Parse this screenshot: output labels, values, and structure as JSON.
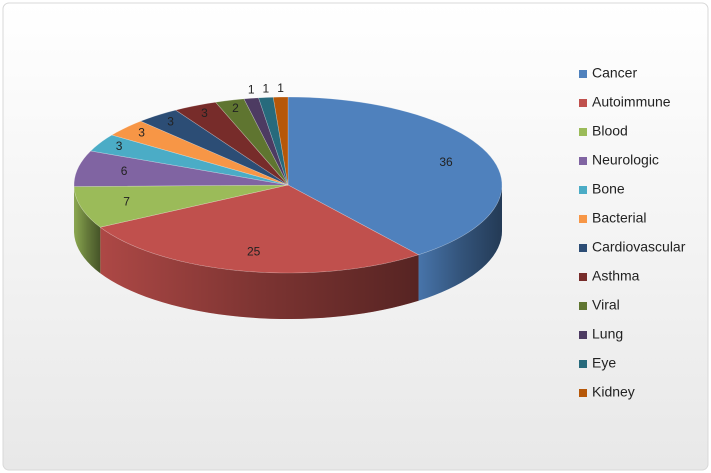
{
  "chart_data": {
    "type": "pie3d",
    "categories": [
      "Cancer",
      "Autoimmune",
      "Blood",
      "Neurologic",
      "Bone",
      "Bacterial",
      "Cardiovascular",
      "Asthma",
      "Viral",
      "Lung",
      "Eye",
      "Kidney"
    ],
    "values": [
      36,
      25,
      7,
      6,
      3,
      3,
      3,
      3,
      2,
      1,
      1,
      1
    ],
    "colors": [
      "#4f81bd",
      "#c0504d",
      "#9bbb59",
      "#8064a2",
      "#4bacc6",
      "#f79646",
      "#2c4d75",
      "#772c2a",
      "#5f7530",
      "#4d3b62",
      "#276a7c",
      "#b65708"
    ],
    "legend": "right"
  }
}
